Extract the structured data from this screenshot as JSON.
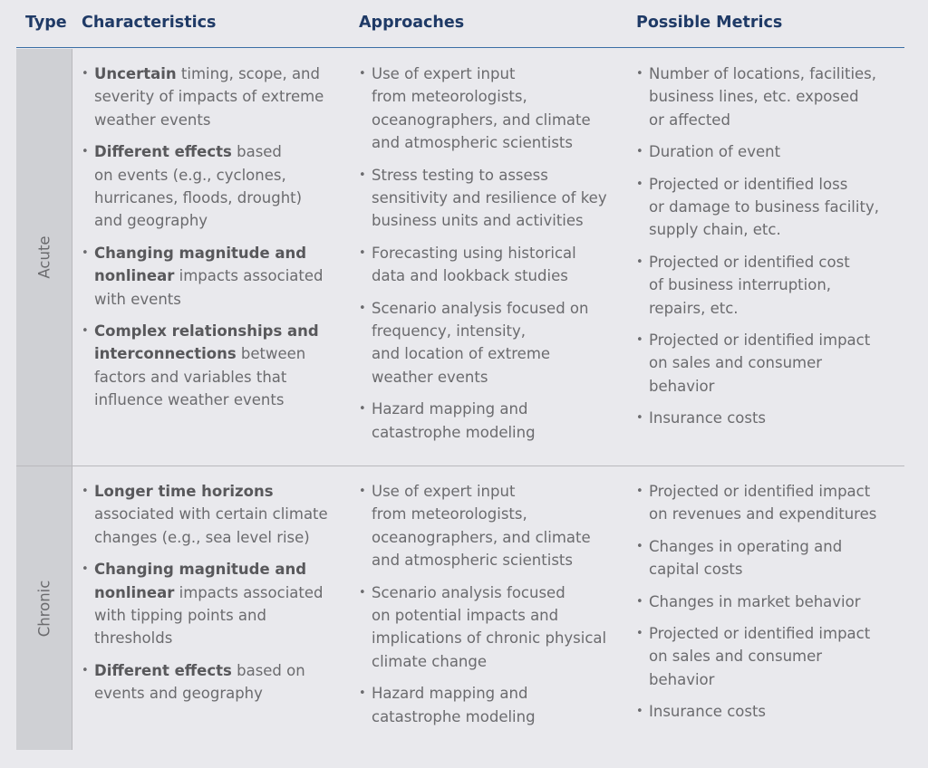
{
  "headers": {
    "type": "Type",
    "characteristics": "Characteristics",
    "approaches": "Approaches",
    "metrics": "Possible Metrics"
  },
  "rows": [
    {
      "type": "Acute",
      "characteristics": [
        {
          "bold": "Uncertain",
          "rest": " timing, scope, and\nseverity of impacts of extreme\nweather events"
        },
        {
          "bold": "Different effects",
          "rest": " based\non events (e.g., cyclones,\nhurricanes, floods, drought)\nand geography"
        },
        {
          "bold": "Changing magnitude and\nnonlinear",
          "rest": " impacts associated\nwith events"
        },
        {
          "bold": "Complex relationships and\ninterconnections",
          "rest": " between\nfactors and variables that\ninfluence weather events"
        }
      ],
      "approaches": [
        "Use of expert input\nfrom meteorologists,\noceanographers, and climate\nand atmospheric scientists",
        "Stress testing to assess\nsensitivity and resilience of key\nbusiness units and activities",
        "Forecasting using historical\ndata and lookback studies",
        "Scenario analysis focused on\nfrequency, intensity,\nand location of extreme\nweather events",
        "Hazard mapping and\ncatastrophe modeling"
      ],
      "metrics": [
        "Number of locations, facilities,\nbusiness lines, etc. exposed\nor affected",
        "Duration of event",
        "Projected or identified loss\nor damage to business facility,\nsupply chain, etc.",
        "Projected or identified cost\nof business interruption,\nrepairs, etc.",
        "Projected or identified impact\non sales and consumer\nbehavior",
        "Insurance costs"
      ]
    },
    {
      "type": "Chronic",
      "characteristics": [
        {
          "bold": "Longer time horizons",
          "rest": "\nassociated with certain climate\nchanges (e.g., sea level rise)"
        },
        {
          "bold": "Changing magnitude and\nnonlinear",
          "rest": " impacts associated\nwith tipping points and\nthresholds"
        },
        {
          "bold": "Different effects",
          "rest": " based on\nevents and geography"
        }
      ],
      "approaches": [
        "Use of expert input\nfrom meteorologists,\noceanographers, and climate\nand atmospheric scientists",
        "Scenario analysis focused\non potential impacts and\nimplications of chronic physical\nclimate change",
        "Hazard mapping and\ncatastrophe modeling"
      ],
      "metrics": [
        "Projected or identified impact\non revenues and expenditures",
        "Changes in operating and\ncapital costs",
        "Changes in market behavior",
        "Projected or identified impact\non sales and consumer\nbehavior",
        "Insurance costs"
      ]
    }
  ]
}
